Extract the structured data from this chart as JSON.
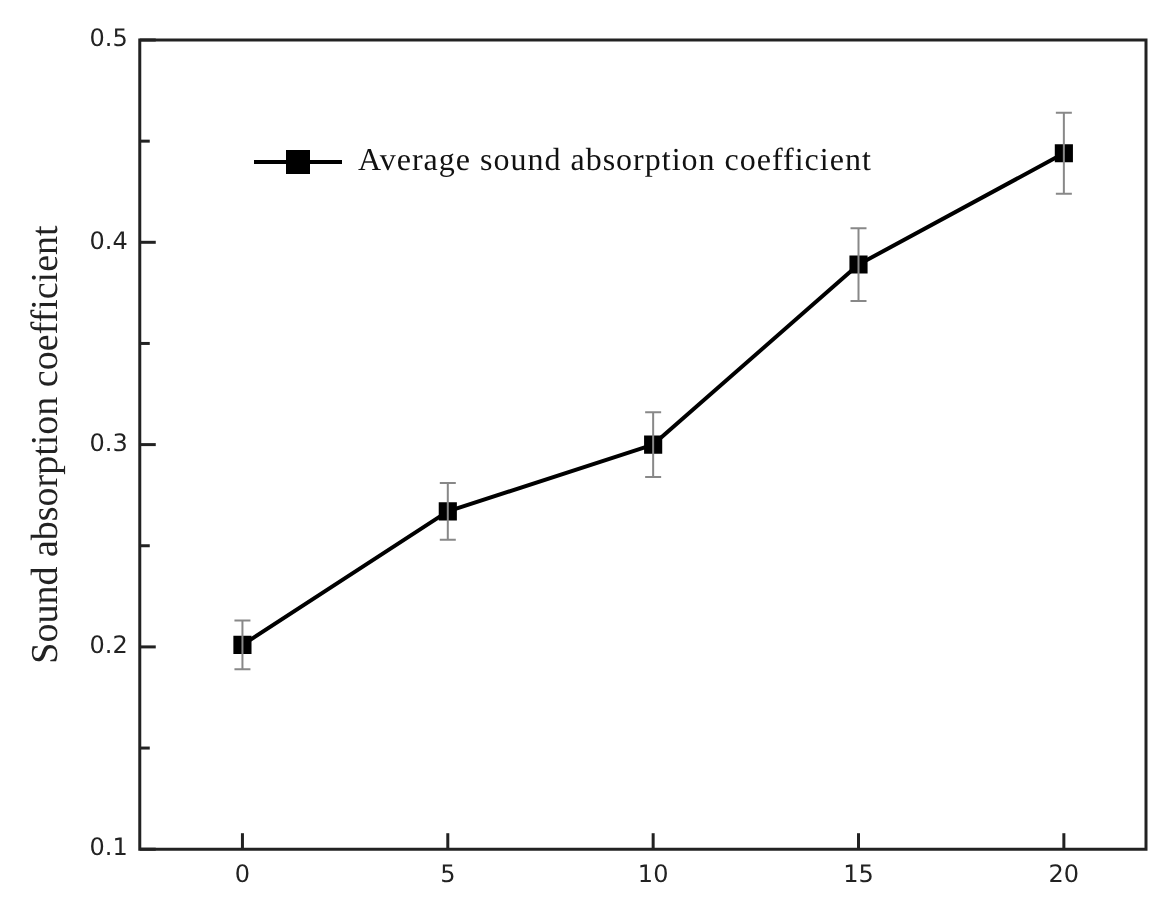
{
  "chart_data": {
    "type": "line",
    "ylabel": "Sound absorption coefficient",
    "x": [
      0,
      5,
      10,
      15,
      20
    ],
    "series": [
      {
        "name": "Average sound absorption coefficient",
        "color": "#000000",
        "values": [
          0.201,
          0.267,
          0.3,
          0.389,
          0.444
        ],
        "errors": [
          0.012,
          0.014,
          0.016,
          0.018,
          0.02
        ]
      }
    ],
    "xlim": [
      -2.5,
      22
    ],
    "xticks": [
      0,
      5,
      10,
      15,
      20
    ],
    "ylim": [
      0.1,
      0.5
    ],
    "yticks": [
      0.1,
      {
        "value": 0.15,
        "label": null
      },
      0.2,
      {
        "value": 0.25,
        "label": null
      },
      0.3,
      {
        "value": 0.35,
        "label": null
      },
      0.4,
      {
        "value": 0.45,
        "label": null
      },
      0.5
    ],
    "marker": "square",
    "line_style": "solid",
    "legend": "top left",
    "grid": false
  }
}
